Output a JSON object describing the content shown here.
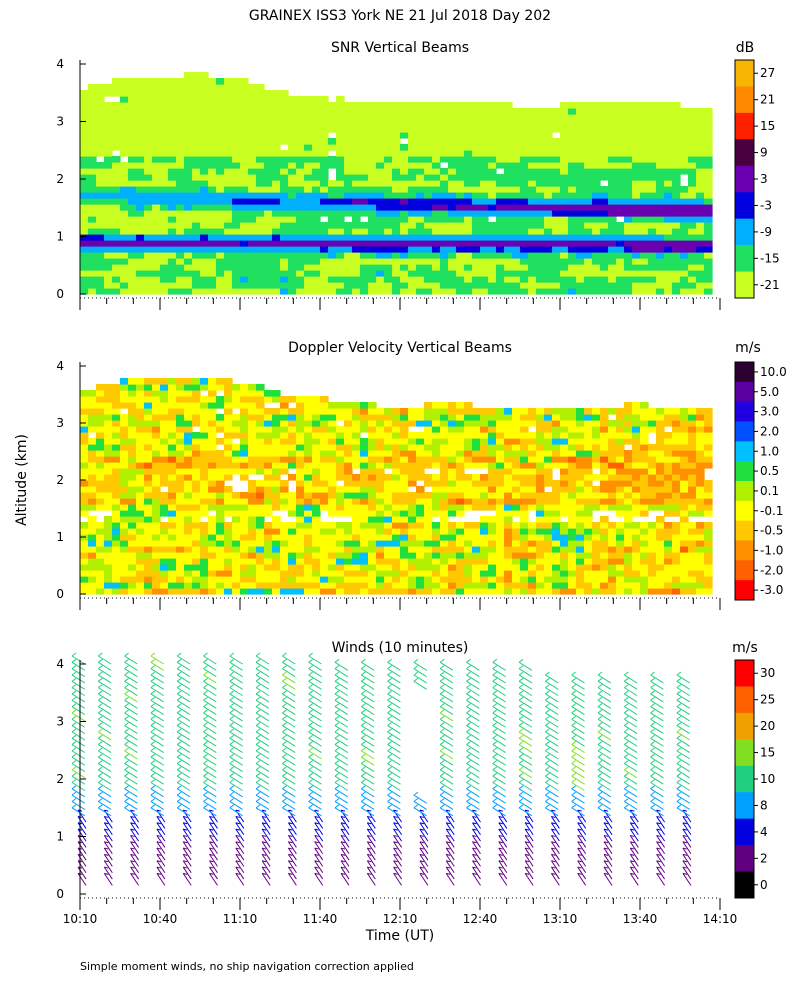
{
  "title": "GRAINEX ISS3 York NE  21 Jul 2018 Day 202",
  "ylabel": "Altitude (km)",
  "xlabel": "Time (UT)",
  "footnote": "Simple moment winds, no ship navigation correction applied",
  "time_ticks": [
    "10:10",
    "10:40",
    "11:10",
    "11:40",
    "12:10",
    "12:40",
    "13:10",
    "13:40",
    "14:10"
  ],
  "altitude_ticks": [
    "0",
    "1",
    "2",
    "3",
    "4"
  ],
  "chart_data": [
    {
      "type": "heatmap",
      "title": "SNR Vertical Beams",
      "unit": "dB",
      "x_range": [
        "10:10",
        "14:10"
      ],
      "y_range_km": [
        0,
        4
      ],
      "colorbar": {
        "labels": [
          "27",
          "21",
          "15",
          "9",
          "3",
          "-3",
          "-9",
          "-15",
          "-21"
        ],
        "colors": [
          "#f7b400",
          "#ff8a00",
          "#ff2000",
          "#4a0040",
          "#6a00b0",
          "#0000e0",
          "#00b0ff",
          "#20e060",
          "#c8ff20"
        ]
      },
      "features": {
        "low_snr_band_altitudes_km": [
          0.9,
          1.7
        ],
        "data_top_km": [
          3.8,
          3.2
        ]
      }
    },
    {
      "type": "heatmap",
      "title": "Doppler Velocity Vertical Beams",
      "unit": "m/s",
      "x_range": [
        "10:10",
        "14:10"
      ],
      "y_range_km": [
        0,
        4
      ],
      "colorbar": {
        "labels": [
          "10.0",
          "5.0",
          "3.0",
          "2.0",
          "1.0",
          "0.5",
          "0.1",
          "-0.1",
          "-0.5",
          "-1.0",
          "-2.0",
          "-3.0"
        ],
        "colors": [
          "#2a0030",
          "#5a00a0",
          "#2000e0",
          "#0050ff",
          "#00c0ff",
          "#20e040",
          "#b0f000",
          "#ffff00",
          "#ffc800",
          "#ff9000",
          "#ff6000",
          "#ff0000"
        ]
      }
    },
    {
      "type": "barbs",
      "title": "Winds (10 minutes)",
      "unit": "m/s",
      "x_range": [
        "10:10",
        "14:10"
      ],
      "y_range_km": [
        0,
        4
      ],
      "colorbar": {
        "labels": [
          "30",
          "25",
          "20",
          "15",
          "10",
          "8",
          "4",
          "2",
          "0"
        ],
        "colors": [
          "#ff0000",
          "#ff6000",
          "#f0a000",
          "#80e020",
          "#20d080",
          "#00a0ff",
          "#0000e0",
          "#600080",
          "#000000"
        ]
      }
    }
  ]
}
